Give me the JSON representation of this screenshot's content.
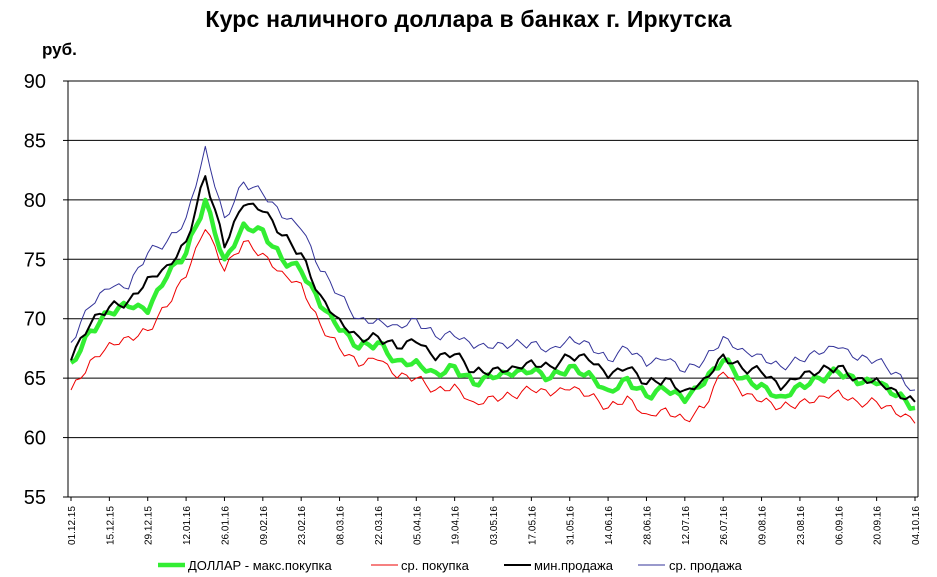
{
  "chart_data": {
    "type": "line",
    "title": "Курс наличного доллара в банках г. Иркутска",
    "ylabel": "руб.",
    "xlabel": "",
    "ylim": [
      55,
      90
    ],
    "yticks": [
      55,
      60,
      65,
      70,
      75,
      80,
      85,
      90
    ],
    "grid": "horizontal",
    "legend_position": "bottom",
    "x_tick_labels": [
      "01.12.15",
      "15.12.15",
      "29.12.15",
      "12.01.16",
      "26.01.16",
      "09.02.16",
      "23.02.16",
      "08.03.16",
      "22.03.16",
      "05.04.16",
      "19.04.16",
      "03.05.16",
      "17.05.16",
      "31.05.16",
      "14.06.16",
      "28.06.16",
      "12.07.16",
      "26.07.16",
      "09.08.16",
      "23.08.16",
      "06.09.16",
      "20.09.16",
      "04.10.16"
    ],
    "x": [
      "01.12.15",
      "08.12.15",
      "15.12.15",
      "22.12.15",
      "29.12.15",
      "05.01.16",
      "12.01.16",
      "19.01.16",
      "26.01.16",
      "02.02.16",
      "09.02.16",
      "16.02.16",
      "23.02.16",
      "01.03.16",
      "08.03.16",
      "15.03.16",
      "22.03.16",
      "29.03.16",
      "05.04.16",
      "12.04.16",
      "19.04.16",
      "26.04.16",
      "03.05.16",
      "10.05.16",
      "17.05.16",
      "24.05.16",
      "31.05.16",
      "07.06.16",
      "14.06.16",
      "21.06.16",
      "28.06.16",
      "05.07.16",
      "12.07.16",
      "19.07.16",
      "26.07.16",
      "02.08.16",
      "09.08.16",
      "16.08.16",
      "23.08.16",
      "30.08.16",
      "06.09.16",
      "13.09.16",
      "20.09.16",
      "27.09.16",
      "04.10.16"
    ],
    "series": [
      {
        "name": "ДОЛЛАР - макс.покупка",
        "color": "#33ee33",
        "values": [
          66.3,
          69.0,
          70.5,
          71.0,
          70.5,
          73.5,
          75.5,
          80.0,
          75.0,
          78.0,
          77.5,
          75.0,
          74.0,
          71.0,
          69.0,
          67.5,
          68.0,
          66.5,
          66.5,
          65.5,
          66.0,
          64.5,
          65.0,
          65.2,
          65.5,
          65.0,
          66.0,
          65.5,
          64.0,
          65.0,
          63.5,
          64.0,
          63.0,
          64.5,
          66.5,
          65.0,
          64.5,
          63.5,
          64.5,
          65.0,
          65.5,
          64.5,
          64.5,
          63.5,
          62.5
        ]
      },
      {
        "name": "ср. покупка",
        "color": "#ee0000",
        "values": [
          64.0,
          66.5,
          68.0,
          68.5,
          69.0,
          71.0,
          73.5,
          77.5,
          74.0,
          76.5,
          75.5,
          74.0,
          73.0,
          69.5,
          67.5,
          66.0,
          66.5,
          65.0,
          65.0,
          64.0,
          64.5,
          63.0,
          63.5,
          63.5,
          64.0,
          63.5,
          64.0,
          63.5,
          62.5,
          63.5,
          62.0,
          62.5,
          61.5,
          62.5,
          65.5,
          63.5,
          63.0,
          62.5,
          63.0,
          63.5,
          64.0,
          63.0,
          63.0,
          62.0,
          61.2
        ]
      },
      {
        "name": "мин.продажа",
        "color": "#000000",
        "values": [
          66.5,
          69.5,
          71.0,
          71.5,
          73.5,
          74.5,
          76.5,
          82.0,
          76.0,
          79.5,
          79.0,
          77.0,
          75.5,
          72.0,
          70.0,
          68.5,
          68.5,
          67.5,
          68.0,
          66.5,
          67.0,
          65.5,
          65.8,
          66.0,
          66.5,
          66.0,
          66.8,
          66.5,
          65.0,
          65.8,
          64.5,
          65.0,
          64.0,
          65.0,
          67.0,
          65.8,
          65.5,
          64.0,
          65.0,
          65.5,
          66.0,
          65.0,
          65.0,
          64.0,
          63.0
        ]
      },
      {
        "name": "ср. продажа",
        "color": "#333399",
        "values": [
          68.0,
          71.0,
          72.5,
          72.5,
          75.5,
          76.5,
          78.5,
          84.5,
          78.5,
          81.5,
          80.5,
          78.5,
          77.5,
          74.0,
          72.0,
          70.0,
          70.0,
          69.5,
          70.0,
          68.5,
          68.5,
          67.5,
          67.5,
          67.8,
          68.0,
          67.5,
          68.5,
          68.0,
          66.5,
          67.5,
          66.0,
          66.5,
          65.5,
          66.5,
          68.5,
          67.5,
          67.0,
          66.0,
          66.5,
          67.0,
          67.5,
          66.5,
          66.5,
          65.5,
          64.0
        ]
      }
    ]
  }
}
